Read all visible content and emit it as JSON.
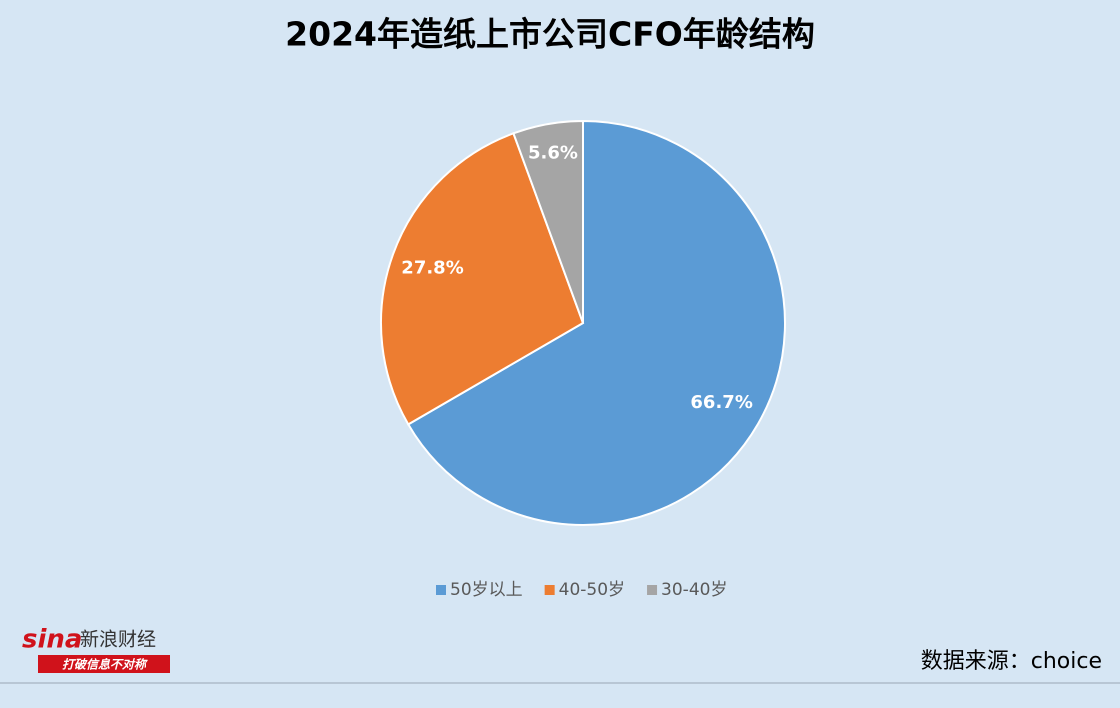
{
  "chart_data": {
    "type": "pie",
    "title": "2024年造纸上市公司CFO年龄结构",
    "categories": [
      "50岁以上",
      "40-50岁",
      "30-40岁"
    ],
    "values": [
      66.7,
      27.8,
      5.6
    ],
    "value_labels": [
      "66.7%",
      "27.8%",
      "5.6%"
    ],
    "colors": [
      "#5b9bd5",
      "#ed7d31",
      "#a5a5a5"
    ],
    "legend": "bottom"
  },
  "source": "数据来源：choice",
  "logo": {
    "brand": "sina",
    "name": "新浪财经",
    "slogan": "打破信息不对称"
  }
}
